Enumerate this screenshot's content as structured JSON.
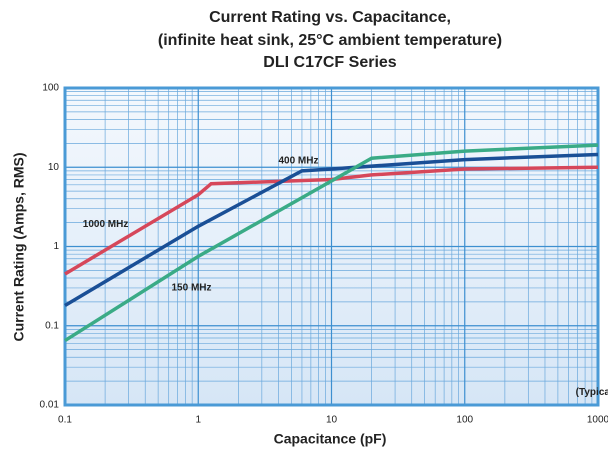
{
  "chart_data": {
    "type": "line",
    "title": [
      "Current Rating vs. Capacitance,",
      "(infinite heat sink, 25°C ambient temperature)",
      "DLI C17CF Series"
    ],
    "x_label": "Capacitance (pF)",
    "y_label": "Current Rating (Amps, RMS)",
    "log_x": true,
    "log_y": true,
    "grid": true,
    "xlim": [
      0.1,
      1000
    ],
    "xticks": [
      0.1,
      1,
      10,
      100,
      1000
    ],
    "ylim": [
      0.01,
      100
    ],
    "yticks": [
      0.01,
      0.1,
      1,
      10,
      100
    ],
    "series": [
      {
        "name": "1000 MHz",
        "color": "#d6475a",
        "x": [
          0.1,
          1,
          1.25,
          10,
          20,
          100,
          1000
        ],
        "values": [
          0.45,
          4.5,
          6.2,
          7,
          8,
          9.5,
          10
        ]
      },
      {
        "name": "400 MHz",
        "color": "#1a4f96",
        "x": [
          0.1,
          1,
          6,
          10,
          100,
          1000
        ],
        "values": [
          0.18,
          1.8,
          9,
          9.5,
          12.5,
          14.5
        ]
      },
      {
        "name": "150 MHz",
        "color": "#3aab86",
        "x": [
          0.1,
          1,
          20,
          100,
          1000
        ],
        "values": [
          0.065,
          0.75,
          13,
          16,
          19
        ]
      }
    ],
    "annotations": [
      {
        "text": "1000 MHz",
        "x": 0.136,
        "y": 1.9
      },
      {
        "text": "400 MHz",
        "x": 4,
        "y": 12
      },
      {
        "text": "150 MHz",
        "x": 0.63,
        "y": 0.3
      },
      {
        "text": "(Typical)",
        "x": 680,
        "y": 0.0145
      }
    ]
  }
}
